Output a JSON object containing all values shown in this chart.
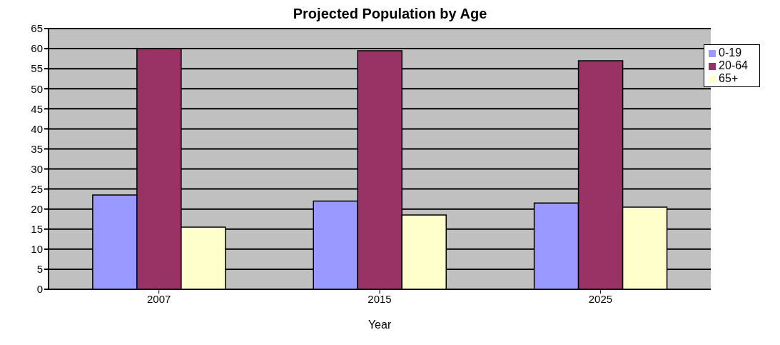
{
  "chart_data": {
    "type": "bar",
    "title": "Projected Population by Age",
    "xlabel": "Year",
    "categories": [
      "2007",
      "2015",
      "2025"
    ],
    "series": [
      {
        "name": "0-19",
        "color": "#9999ff",
        "values": [
          23.5,
          22,
          21.5
        ]
      },
      {
        "name": "20-64",
        "color": "#993366",
        "values": [
          60,
          59.5,
          57
        ]
      },
      {
        "name": "65+",
        "color": "#ffffcc",
        "values": [
          15.5,
          18.5,
          20.5
        ]
      }
    ],
    "ylim": [
      0,
      65
    ],
    "yticks": [
      0,
      5,
      10,
      15,
      20,
      25,
      30,
      35,
      40,
      45,
      50,
      55,
      60,
      65
    ],
    "grid": "y",
    "legend": "top right"
  }
}
